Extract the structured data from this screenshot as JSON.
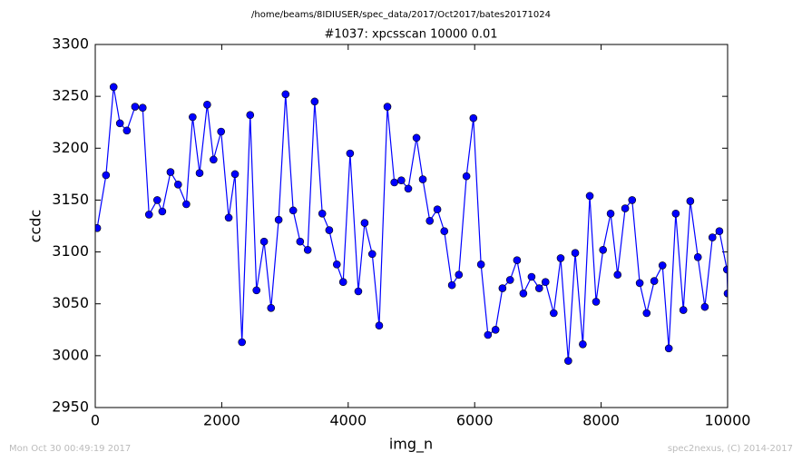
{
  "chart_data": {
    "type": "line",
    "suptitle": "/home/beams/8IDIUSER/spec_data/2017/Oct2017/bates20171024",
    "title": "#1037: xpcsscan 10000 0.01",
    "xlabel": "img_n",
    "ylabel": "ccdc",
    "footer_left": "Mon Oct 30 00:49:19 2017",
    "footer_right": "spec2nexus, (C) 2014-2017",
    "x": [
      30,
      170,
      290,
      390,
      500,
      630,
      750,
      850,
      980,
      1060,
      1190,
      1310,
      1440,
      1540,
      1650,
      1770,
      1870,
      1990,
      2110,
      2210,
      2320,
      2450,
      2550,
      2670,
      2780,
      2900,
      3010,
      3130,
      3240,
      3360,
      3470,
      3590,
      3700,
      3820,
      3920,
      4030,
      4160,
      4260,
      4380,
      4490,
      4620,
      4730,
      4840,
      4950,
      5080,
      5180,
      5290,
      5410,
      5520,
      5640,
      5750,
      5870,
      5980,
      6100,
      6210,
      6330,
      6440,
      6560,
      6670,
      6770,
      6900,
      7020,
      7120,
      7250,
      7360,
      7480,
      7590,
      7710,
      7820,
      7920,
      8030,
      8150,
      8260,
      8380,
      8490,
      8610,
      8720,
      8840,
      8970,
      9070,
      9180,
      9300,
      9410,
      9530,
      9640,
      9760,
      9870,
      9990,
      10000
    ],
    "series": [
      {
        "name": "ccdc",
        "color": "#0000ff",
        "marker_edge": "#000000",
        "values": [
          3123,
          3174,
          3259,
          3224,
          3217,
          3240,
          3239,
          3136,
          3150,
          3139,
          3177,
          3165,
          3146,
          3230,
          3176,
          3242,
          3189,
          3216,
          3133,
          3175,
          3013,
          3232,
          3063,
          3110,
          3046,
          3131,
          3252,
          3140,
          3110,
          3102,
          3245,
          3137,
          3121,
          3088,
          3071,
          3195,
          3062,
          3128,
          3098,
          3029,
          3240,
          3167,
          3169,
          3161,
          3210,
          3170,
          3130,
          3141,
          3120,
          3068,
          3078,
          3173,
          3229,
          3088,
          3020,
          3025,
          3065,
          3073,
          3092,
          3060,
          3076,
          3065,
          3071,
          3041,
          3094,
          2995,
          3099,
          3011,
          3154,
          3052,
          3102,
          3137,
          3078,
          3142,
          3150,
          3070,
          3041,
          3072,
          3087,
          3007,
          3137,
          3044,
          3149,
          3095,
          3047,
          3114,
          3120,
          3083,
          3060
        ]
      }
    ],
    "xlim": [
      0,
      10000
    ],
    "xticks": [
      0,
      2000,
      4000,
      6000,
      8000,
      10000
    ],
    "ylim": [
      2950,
      3300
    ],
    "yticks": [
      2950,
      3000,
      3050,
      3100,
      3150,
      3200,
      3250,
      3300
    ],
    "grid": false
  }
}
